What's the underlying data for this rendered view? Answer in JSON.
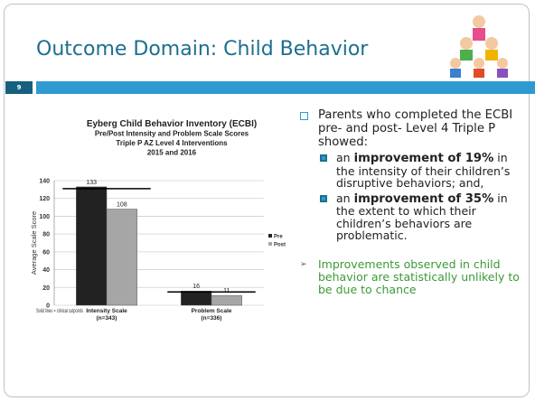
{
  "slide": {
    "title": "Outcome Domain: Child Behavior",
    "number": "9",
    "bullet": "Parents who completed the ECBI pre- and post- Level 4 Triple P showed:",
    "sub_bullets": [
      {
        "lead": "an",
        "emphasis": "improvement of 19%",
        "rest": "in the intensity of their children’s disruptive behaviors; and,"
      },
      {
        "lead": "an",
        "emphasis": "improvement of 35%",
        "rest": "in the extent to which their children’s behaviors are problematic."
      }
    ],
    "conclusion": "Improvements observed in child behavior are statistically unlikely to be due to chance"
  },
  "chart_data": {
    "type": "bar",
    "title": [
      "Eyberg Child Behavior Inventory (ECBI)",
      "Pre/Post Intensity and Problem Scale Scores",
      "Triple P AZ Level 4 Interventions",
      "2015 and 2016"
    ],
    "categories": [
      [
        "Intensity Scale",
        "(n=343)"
      ],
      [
        "Problem Scale",
        "(n=336)"
      ]
    ],
    "series": [
      {
        "name": "Pre",
        "color": "#222222",
        "values": [
          133,
          16
        ]
      },
      {
        "name": "Post",
        "color": "#a6a6a6",
        "values": [
          108,
          11
        ]
      }
    ],
    "cutpoints": [
      131,
      15
    ],
    "annotation": "Solid lines = clinical cutpoints",
    "y_label": "Average Scale Score",
    "ylim": [
      0,
      140
    ],
    "yticks": [
      0,
      20,
      40,
      60,
      80,
      100,
      120,
      140
    ],
    "grid": true,
    "legend": "right"
  }
}
